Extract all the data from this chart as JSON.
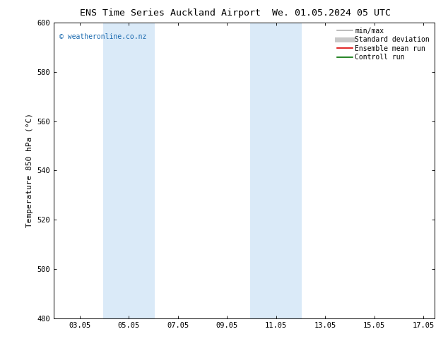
{
  "title_left": "ENS Time Series Auckland Airport",
  "title_right": "We. 01.05.2024 05 UTC",
  "ylabel": "Temperature 850 hPa (°C)",
  "ylim": [
    480,
    600
  ],
  "yticks": [
    480,
    500,
    520,
    540,
    560,
    580,
    600
  ],
  "xlim": [
    2.0,
    17.5
  ],
  "xticks": [
    3.05,
    5.05,
    7.05,
    9.05,
    11.05,
    13.05,
    15.05,
    17.05
  ],
  "xticklabels": [
    "03.05",
    "05.05",
    "07.05",
    "09.05",
    "11.05",
    "13.05",
    "15.05",
    "17.05"
  ],
  "watermark": "© weatheronline.co.nz",
  "watermark_color": "#1a6aaf",
  "shaded_bands": [
    {
      "xmin": 4.0,
      "xmax": 6.1
    },
    {
      "xmin": 10.0,
      "xmax": 12.1
    }
  ],
  "shade_color": "#daeaf8",
  "legend_entries": [
    {
      "label": "min/max",
      "color": "#b0b0b0",
      "lw": 1.2
    },
    {
      "label": "Standard deviation",
      "color": "#c8c8c8",
      "lw": 5
    },
    {
      "label": "Ensemble mean run",
      "color": "#dd0000",
      "lw": 1.2
    },
    {
      "label": "Controll run",
      "color": "#007000",
      "lw": 1.2
    }
  ],
  "bg_color": "#ffffff",
  "title_fontsize": 9.5,
  "tick_fontsize": 7.5,
  "label_fontsize": 8,
  "watermark_fontsize": 7,
  "legend_fontsize": 7
}
